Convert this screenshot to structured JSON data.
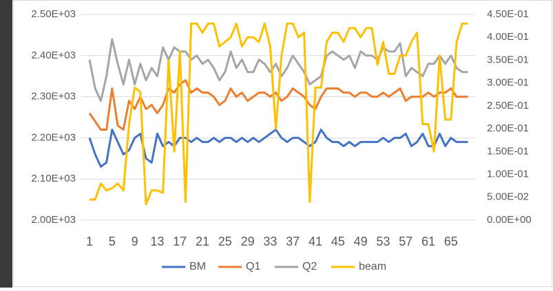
{
  "chart_data": {
    "type": "line",
    "categories": [
      1,
      null,
      null,
      null,
      5,
      null,
      null,
      null,
      9,
      null,
      null,
      null,
      13,
      null,
      null,
      null,
      17,
      null,
      null,
      null,
      21,
      null,
      null,
      null,
      25,
      null,
      null,
      null,
      29,
      null,
      null,
      null,
      33,
      null,
      null,
      null,
      37,
      null,
      null,
      null,
      41,
      null,
      null,
      null,
      45,
      null,
      null,
      null,
      49,
      null,
      null,
      null,
      53,
      null,
      null,
      null,
      57,
      null,
      null,
      null,
      61,
      null,
      null,
      null,
      65,
      null,
      null,
      null
    ],
    "series": [
      {
        "name": "BM",
        "color": "#4472c4",
        "values": [
          2200,
          2160,
          2130,
          2140,
          2220,
          2190,
          2160,
          2170,
          2200,
          2210,
          2150,
          2140,
          2210,
          2180,
          2190,
          2180,
          2200,
          2200,
          2190,
          2200,
          2190,
          2190,
          2200,
          2190,
          2200,
          2200,
          2190,
          2200,
          2190,
          2200,
          2190,
          2200,
          2210,
          2220,
          2200,
          2190,
          2200,
          2200,
          2190,
          2180,
          2190,
          2220,
          2200,
          2190,
          2190,
          2180,
          2190,
          2180,
          2190,
          2190,
          2190,
          2190,
          2200,
          2190,
          2200,
          2200,
          2210,
          2180,
          2190,
          2210,
          2180,
          2180,
          2210,
          2180,
          2200,
          2190,
          2190,
          2190
        ]
      },
      {
        "name": "Q1",
        "color": "#ed7d31",
        "values": [
          2260,
          2240,
          2220,
          2220,
          2320,
          2230,
          2220,
          2290,
          2270,
          2300,
          2270,
          2280,
          2260,
          2280,
          2320,
          2310,
          2330,
          2340,
          2310,
          2320,
          2310,
          2310,
          2300,
          2280,
          2290,
          2320,
          2300,
          2310,
          2290,
          2300,
          2310,
          2310,
          2300,
          2310,
          2290,
          2300,
          2320,
          2310,
          2300,
          2280,
          2270,
          2300,
          2320,
          2320,
          2320,
          2310,
          2310,
          2300,
          2310,
          2310,
          2300,
          2300,
          2310,
          2300,
          2310,
          2320,
          2290,
          2300,
          2300,
          2300,
          2310,
          2300,
          2310,
          2310,
          2320,
          2300,
          2300,
          2300
        ]
      },
      {
        "name": "Q2",
        "color": "#a5a5a5",
        "values": [
          2390,
          2320,
          2290,
          2350,
          2440,
          2380,
          2330,
          2390,
          2330,
          2380,
          2340,
          2370,
          2350,
          2420,
          2390,
          2420,
          2410,
          2410,
          2390,
          2400,
          2380,
          2390,
          2370,
          2340,
          2360,
          2410,
          2370,
          2390,
          2360,
          2360,
          2390,
          2380,
          2360,
          2380,
          2350,
          2370,
          2400,
          2380,
          2360,
          2330,
          2340,
          2350,
          2400,
          2410,
          2400,
          2390,
          2400,
          2370,
          2410,
          2400,
          2400,
          2390,
          2420,
          2410,
          2410,
          2430,
          2350,
          2370,
          2360,
          2350,
          2380,
          2380,
          2400,
          2380,
          2400,
          2370,
          2360,
          2360
        ]
      },
      {
        "name": "beam",
        "color": "#ffc000",
        "axis": "y2",
        "values": [
          0.045,
          0.045,
          0.08,
          0.065,
          0.07,
          0.08,
          0.065,
          0.21,
          0.29,
          0.28,
          0.035,
          0.065,
          0.065,
          0.06,
          0.35,
          0.15,
          0.37,
          0.04,
          0.43,
          0.43,
          0.41,
          0.43,
          0.43,
          0.38,
          0.39,
          0.4,
          0.43,
          0.38,
          0.4,
          0.4,
          0.39,
          0.43,
          0.38,
          0.2,
          0.36,
          0.43,
          0.43,
          0.4,
          0.41,
          0.04,
          0.29,
          0.29,
          0.39,
          0.41,
          0.41,
          0.39,
          0.42,
          0.42,
          0.4,
          0.42,
          0.42,
          0.34,
          0.39,
          0.32,
          0.32,
          0.36,
          0.36,
          0.39,
          0.41,
          0.21,
          0.21,
          0.15,
          0.36,
          0.22,
          0.22,
          0.39,
          0.43,
          0.43
        ]
      }
    ],
    "ylim": [
      2000,
      2500
    ],
    "yticks": [
      {
        "value": 2000,
        "label": "2.00E+03"
      },
      {
        "value": 2100,
        "label": "2.10E+03"
      },
      {
        "value": 2200,
        "label": "2.20E+03"
      },
      {
        "value": 2300,
        "label": "2.30E+03"
      },
      {
        "value": 2400,
        "label": "2.40E+03"
      },
      {
        "value": 2500,
        "label": "2.50E+03"
      }
    ],
    "y2lim": [
      0,
      0.45
    ],
    "y2ticks": [
      {
        "value": 0,
        "label": "0.00E+00"
      },
      {
        "value": 0.05,
        "label": "5.00E-02"
      },
      {
        "value": 0.1,
        "label": "1.00E-01"
      },
      {
        "value": 0.15,
        "label": "1.50E-01"
      },
      {
        "value": 0.2,
        "label": "2.00E-01"
      },
      {
        "value": 0.25,
        "label": "2.50E-01"
      },
      {
        "value": 0.3,
        "label": "3.00E-01"
      },
      {
        "value": 0.35,
        "label": "3.50E-01"
      },
      {
        "value": 0.4,
        "label": "4.00E-01"
      },
      {
        "value": 0.45,
        "label": "4.50E-01"
      }
    ],
    "grid": true,
    "legend": "bottom"
  }
}
